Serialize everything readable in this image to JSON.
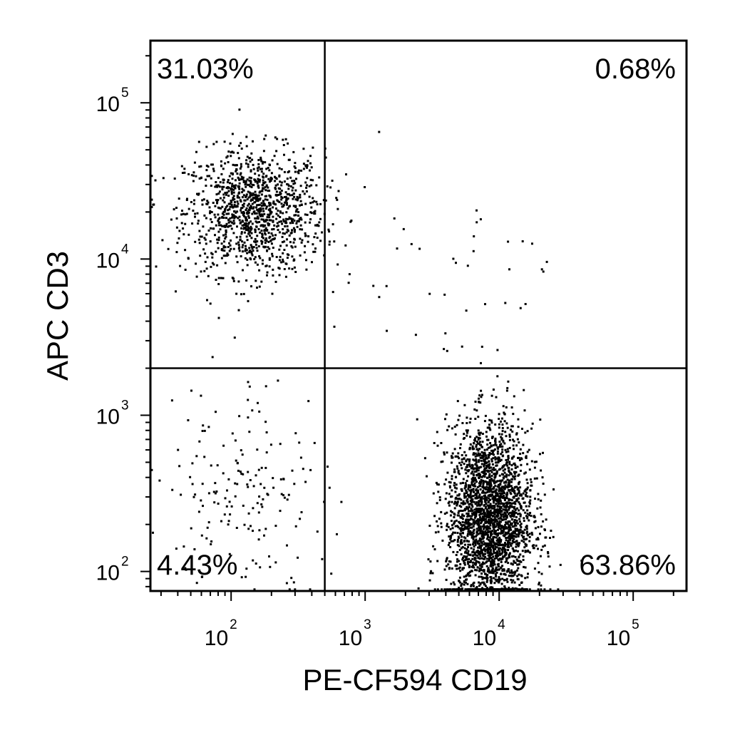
{
  "chart_data": {
    "type": "scatter",
    "title": "",
    "xlabel": "PE-CF594 CD19",
    "ylabel": "APC CD3",
    "x_scale": "log",
    "y_scale": "log",
    "xlim": [
      25,
      250000
    ],
    "ylim": [
      75,
      250000
    ],
    "x_ticks": [
      {
        "value": 100,
        "base": "10",
        "exp": "2"
      },
      {
        "value": 1000,
        "base": "10",
        "exp": "3"
      },
      {
        "value": 10000,
        "base": "10",
        "exp": "4"
      },
      {
        "value": 100000,
        "base": "10",
        "exp": "5"
      }
    ],
    "y_ticks": [
      {
        "value": 100,
        "base": "10",
        "exp": "2"
      },
      {
        "value": 1000,
        "base": "10",
        "exp": "3"
      },
      {
        "value": 10000,
        "base": "10",
        "exp": "4"
      },
      {
        "value": 100000,
        "base": "10",
        "exp": "5"
      }
    ],
    "gates": {
      "x": 500,
      "y": 2000
    },
    "quadrants": [
      {
        "position": "top-left",
        "label": "31.03%"
      },
      {
        "position": "top-right",
        "label": "0.68%"
      },
      {
        "position": "bottom-left",
        "label": "4.43%"
      },
      {
        "position": "bottom-right",
        "label": "63.86%"
      }
    ],
    "populations": [
      {
        "name_hint": "CD3+ CD19-",
        "center_x": 150,
        "center_y": 20000,
        "spread_x": 0.26,
        "spread_y": 0.2,
        "approx_points": 1200
      },
      {
        "name_hint": "CD3- CD19+",
        "center_x": 8500,
        "center_y": 220,
        "spread_x": 0.16,
        "spread_y": 0.3,
        "approx_points": 2600
      },
      {
        "name_hint": "CD3- CD19-",
        "center_x": 130,
        "center_y": 350,
        "spread_x": 0.3,
        "spread_y": 0.35,
        "approx_points": 180
      },
      {
        "name_hint": "CD3+ CD19+",
        "center_x": 4000,
        "center_y": 8000,
        "spread_x": 0.4,
        "spread_y": 0.3,
        "approx_points": 40
      }
    ]
  }
}
